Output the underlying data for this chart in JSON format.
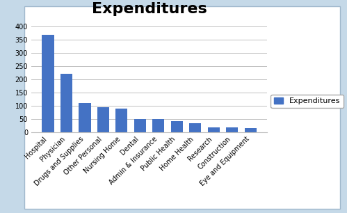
{
  "title": "Expenditures",
  "categories": [
    "Hospital",
    "Physician",
    "Drugs and Supplies",
    "Other Personal",
    "Nursing Home",
    "Dental",
    "Admin & Insurance",
    "Public Health",
    "Home Health",
    "Research",
    "Construction",
    "Eye and Equipment"
  ],
  "values": [
    370,
    220,
    110,
    95,
    88,
    50,
    50,
    42,
    33,
    17,
    18,
    15
  ],
  "bar_color": "#4472C4",
  "legend_label": "Expenditures",
  "ylim": [
    0,
    420
  ],
  "yticks": [
    0,
    50,
    100,
    150,
    200,
    250,
    300,
    350,
    400
  ],
  "fig_bg_color": "#FFFFFF",
  "outer_bg_color": "#C5D9E8",
  "plot_bg_color": "#FFFFFF",
  "title_fontsize": 16,
  "tick_label_fontsize": 7,
  "grid_color": "#C0C0C0",
  "legend_fontsize": 8
}
